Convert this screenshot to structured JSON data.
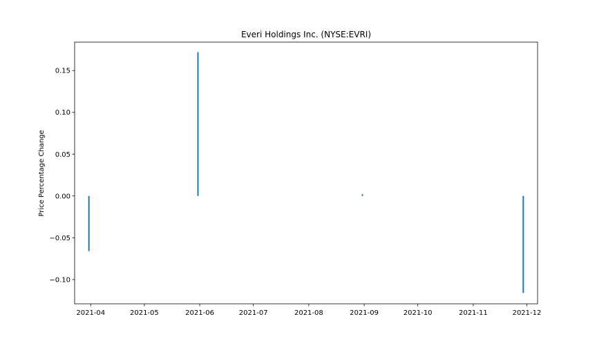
{
  "chart_data": {
    "type": "bar",
    "title": "Everi Holdings Inc. (NYSE:EVRI)",
    "xlabel": "",
    "ylabel": "Price Percentage Change",
    "x": [
      "2021-03-31",
      "2021-05-31",
      "2021-08-31",
      "2021-11-29"
    ],
    "values": [
      -0.066,
      0.172,
      0.002,
      -0.116
    ],
    "xlim": [
      "2021-03-23",
      "2021-12-07"
    ],
    "ylim": [
      -0.129,
      0.184
    ],
    "xticks": [
      "2021-04",
      "2021-05",
      "2021-06",
      "2021-07",
      "2021-08",
      "2021-09",
      "2021-10",
      "2021-11",
      "2021-12"
    ],
    "xtick_dates": [
      "2021-04-01",
      "2021-05-01",
      "2021-06-01",
      "2021-07-01",
      "2021-08-01",
      "2021-09-01",
      "2021-10-01",
      "2021-11-01",
      "2021-12-01"
    ],
    "yticks": [
      -0.1,
      -0.05,
      0.0,
      0.05,
      0.1,
      0.15
    ],
    "ytick_labels": [
      "−0.10",
      "−0.05",
      "0.00",
      "0.05",
      "0.10",
      "0.15"
    ],
    "grid": false,
    "bar_color": "#1f77b4"
  }
}
